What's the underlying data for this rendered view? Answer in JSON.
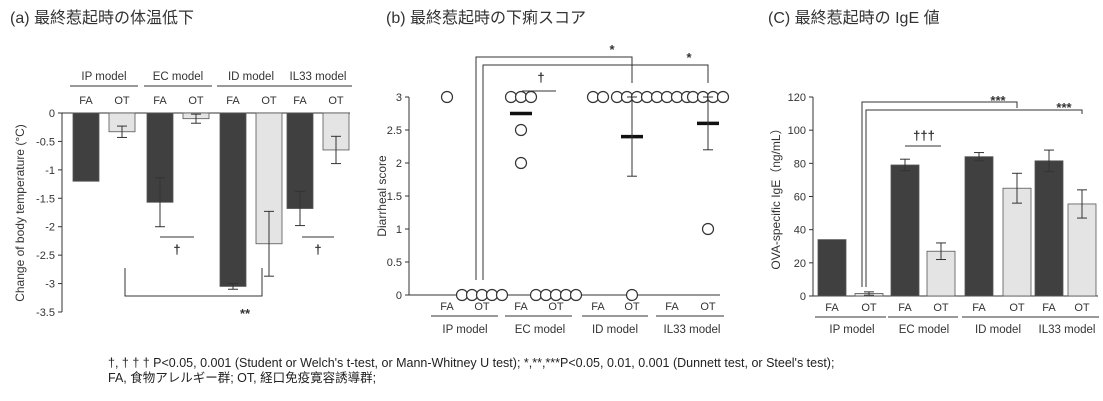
{
  "chart_data": [
    {
      "type": "bar",
      "panel": "(a)",
      "title": "(a) 最終惹起時の体温低下",
      "ylabel": "Change of body temperature (°C)",
      "ylim": [
        -3.5,
        0
      ],
      "yticks": [
        "0",
        "-0.5",
        "-1",
        "-1.5",
        "-2",
        "-2.5",
        "-3",
        "-3.5"
      ],
      "models": [
        "IP model",
        "EC model",
        "ID model",
        "IL33 model"
      ],
      "groups": [
        "FA",
        "OT"
      ],
      "series": [
        {
          "name": "FA",
          "color": "#404040",
          "values": [
            -1.2,
            -1.57,
            -3.05,
            -1.68
          ],
          "errors": [
            0,
            0.43,
            0.05,
            0.3
          ]
        },
        {
          "name": "OT",
          "color": "#e4e4e4",
          "values": [
            -0.33,
            -0.1,
            -2.3,
            -0.65
          ],
          "errors": [
            0.1,
            0.08,
            0.57,
            0.24
          ]
        }
      ],
      "significance": [
        {
          "label": "†",
          "model": "EC model"
        },
        {
          "label": "†",
          "model": "IL33 model"
        },
        {
          "label": "**",
          "from": "IP model FA",
          "to": "ID model FA"
        }
      ]
    },
    {
      "type": "scatter",
      "panel": "(b)",
      "title": "(b) 最終惹起時の下痢スコア",
      "ylabel": "Diarrheal score",
      "ylim": [
        0,
        3
      ],
      "yticks": [
        "0",
        "0.5",
        "1",
        "1.5",
        "2",
        "2.5",
        "3"
      ],
      "models": [
        "IP model",
        "EC model",
        "ID model",
        "IL33 model"
      ],
      "groups": [
        "FA",
        "OT"
      ],
      "points": {
        "IP model": {
          "FA": [
            3
          ],
          "OT": [
            0,
            0,
            0,
            0,
            0
          ]
        },
        "EC model": {
          "FA": [
            3,
            3,
            3,
            2.5,
            2
          ],
          "OT": [
            0,
            0,
            0,
            0,
            0
          ]
        },
        "ID model": {
          "FA": [
            3,
            3
          ],
          "OT": [
            3,
            3,
            3,
            3,
            0
          ]
        },
        "IL33 model": {
          "FA": [
            3,
            3,
            3,
            3
          ],
          "OT": [
            3,
            3,
            3,
            3,
            1
          ]
        }
      },
      "means": {
        "EC model": {
          "FA": 2.75
        },
        "ID model": {
          "OT": 2.4
        },
        "IL33 model": {
          "OT": 2.6
        }
      },
      "sd": {
        "ID model": {
          "OT": [
            1.8,
            3.0
          ]
        },
        "IL33 model": {
          "OT": [
            2.2,
            3.0
          ]
        }
      },
      "significance": [
        {
          "label": "†",
          "model": "EC model"
        },
        {
          "label": "*",
          "from": "IP model OT",
          "to": "ID model OT"
        },
        {
          "label": "*",
          "from": "IP model OT",
          "to": "IL33 model OT"
        }
      ]
    },
    {
      "type": "bar",
      "panel": "(C)",
      "title": "(C) 最終惹起時の IgE 値",
      "ylabel": "OVA-specific IgE（ng/mL）",
      "ylim": [
        0,
        120
      ],
      "yticks": [
        "0",
        "20",
        "40",
        "60",
        "80",
        "100",
        "120"
      ],
      "models": [
        "IP model",
        "EC model",
        "ID model",
        "IL33 model"
      ],
      "groups": [
        "FA",
        "OT"
      ],
      "series": [
        {
          "name": "FA",
          "color": "#404040",
          "values": [
            34,
            79,
            84,
            81.5
          ],
          "errors": [
            0,
            3.5,
            2.5,
            6.5
          ]
        },
        {
          "name": "OT",
          "color": "#e4e4e4",
          "values": [
            1.5,
            27,
            65,
            55.5
          ],
          "errors": [
            1,
            5,
            9,
            8.5
          ]
        }
      ],
      "significance": [
        {
          "label": "†††",
          "model": "EC model"
        },
        {
          "label": "***",
          "from": "IP model OT",
          "to": "ID model OT"
        },
        {
          "label": "***",
          "from": "IP model OT",
          "to": "IL33 model OT"
        }
      ]
    }
  ],
  "footnote": {
    "line1": "†, † † † P<0.05, 0.001 (Student  or Welch's t-test, or Mann-Whitney  U test); *,**,***P<0.05, 0.01, 0.001 (Dunnett test, or Steel's test);",
    "line2": "FA, 食物アレルギー群; OT, 経口免疫寛容誘導群;"
  }
}
